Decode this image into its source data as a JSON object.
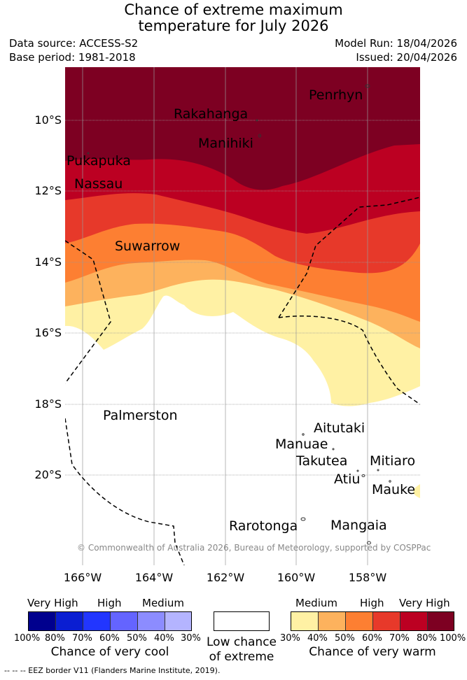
{
  "title": {
    "line1": "Chance of extreme maximum",
    "line2": "temperature for July 2026"
  },
  "meta": {
    "data_source": "Data source: ACCESS-S2",
    "base_period": "Base period: 1981-2018",
    "model_run": "Model Run: 18/04/2026",
    "issued": "Issued: 20/04/2026"
  },
  "map": {
    "copyright": "© Commonwealth of Australia 2026, Bureau of Meteorology, supported by COSPPac",
    "lat_labels": [
      "10°S",
      "12°S",
      "14°S",
      "16°S",
      "18°S",
      "20°S"
    ],
    "lon_labels": [
      "166°W",
      "164°W",
      "162°W",
      "160°W",
      "158°W"
    ],
    "places": {
      "penrhyn": "Penrhyn",
      "rakahanga": "Rakahanga",
      "manihiki": "Manihiki",
      "pukapuka": "Pukapuka",
      "nassau": "Nassau",
      "suwarrow": "Suwarrow",
      "palmerston": "Palmerston",
      "aitutaki": "Aitutaki",
      "manuae": "Manuae",
      "takutea": "Takutea",
      "mitiaro": "Mitiaro",
      "atiu": "Atiu",
      "mauke": "Mauke",
      "rarotonga": "Rarotonga",
      "mangaia": "Mangaia"
    },
    "colors": {
      "vh": "#7d0022",
      "p80": "#bc0022",
      "p70": "#e7392a",
      "p60": "#fd7f32",
      "p50": "#fdb25d",
      "p40": "#fff1a4",
      "low": "#ffffff"
    }
  },
  "legend": {
    "cool": {
      "levels": [
        "Very High",
        "High",
        "Medium"
      ],
      "ticks": [
        "100%",
        "80%",
        "70%",
        "60%",
        "50%",
        "40%",
        "30%"
      ],
      "label": "Chance of very cool",
      "colors": [
        "#00008e",
        "#0a1ed2",
        "#2236ff",
        "#6464ff",
        "#8c8cff",
        "#b4b4ff"
      ]
    },
    "low": {
      "label_line1": "Low chance",
      "label_line2": "of extreme"
    },
    "warm": {
      "levels": [
        "Medium",
        "High",
        "Very High"
      ],
      "ticks": [
        "30%",
        "40%",
        "50%",
        "60%",
        "70%",
        "80%",
        "100%"
      ],
      "label": "Chance of very warm",
      "colors": [
        "#fff1a4",
        "#fdb25d",
        "#fd7f32",
        "#e7392a",
        "#bc0022",
        "#7d0022"
      ]
    }
  },
  "footnote": "--  --  -- EEZ border V11 (Flanders Marine Institute, 2019)."
}
